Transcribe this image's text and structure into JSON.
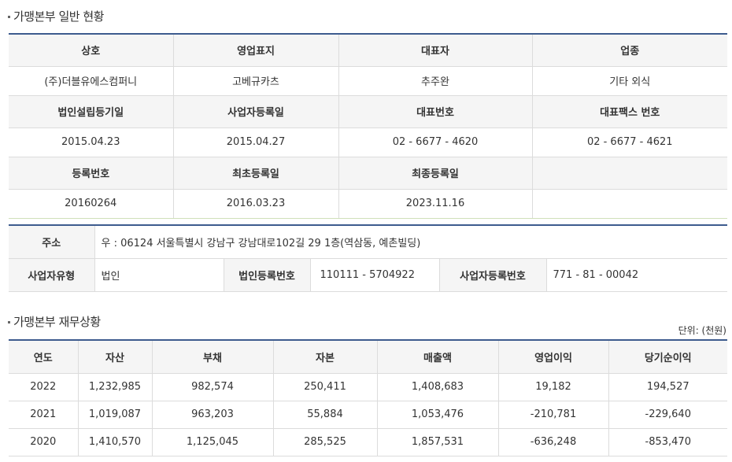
{
  "general": {
    "title": "가맹본부 일반 현황",
    "rows": [
      {
        "type": "header",
        "cells": [
          "상호",
          "영업표지",
          "대표자",
          "업종"
        ]
      },
      {
        "type": "data",
        "cells": [
          "(주)더블유에스컴퍼니",
          "고베규카츠",
          "추주완",
          "기타 외식"
        ]
      },
      {
        "type": "header",
        "cells": [
          "법인설립등기일",
          "사업자등록일",
          "대표번호",
          "대표팩스 번호"
        ]
      },
      {
        "type": "data",
        "cells": [
          "2015.04.23",
          "2015.04.27",
          "02 - 6677 - 4620",
          "02 - 6677 - 4621"
        ]
      },
      {
        "type": "header",
        "cells": [
          "등록번호",
          "최초등록일",
          "최종등록일",
          ""
        ]
      },
      {
        "type": "data",
        "cells": [
          "20160264",
          "2016.03.23",
          "2023.11.16",
          ""
        ]
      }
    ]
  },
  "address": {
    "label": "주소",
    "value": "우 : 06124 서울특별시 강남구 강남대로102길 29 1층(역삼동, 예촌빌딩)",
    "biz_type_label": "사업자유형",
    "biz_type_value": "법인",
    "corp_no_label": "법인등록번호",
    "corp_no_value": "110111 - 5704922",
    "biz_no_label": "사업자등록번호",
    "biz_no_value": "771 - 81 - 00042"
  },
  "finance": {
    "title": "가맹본부 재무상황",
    "unit": "단위: (천원)",
    "headers": [
      "연도",
      "자산",
      "부채",
      "자본",
      "매출액",
      "영업이익",
      "당기순이익"
    ],
    "rows": [
      [
        "2022",
        "1,232,985",
        "982,574",
        "250,411",
        "1,408,683",
        "19,182",
        "194,527"
      ],
      [
        "2021",
        "1,019,087",
        "963,203",
        "55,884",
        "1,053,476",
        "-210,781",
        "-229,640"
      ],
      [
        "2020",
        "1,410,570",
        "1,125,045",
        "285,525",
        "1,857,531",
        "-636,248",
        "-853,470"
      ]
    ]
  }
}
